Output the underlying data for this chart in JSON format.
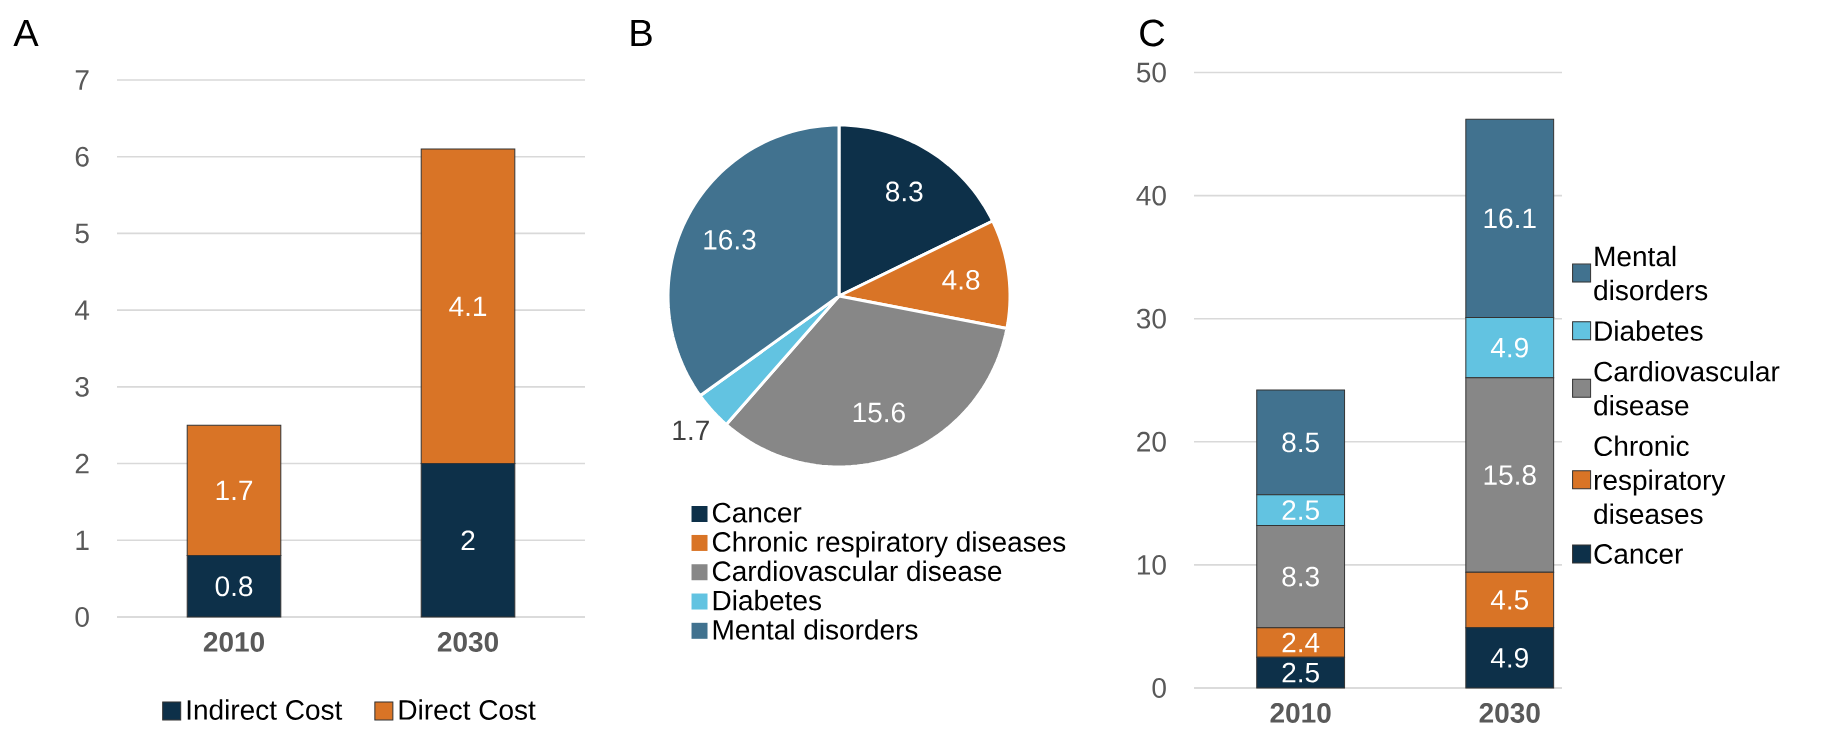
{
  "chart_data": [
    {
      "type": "bar",
      "title": "A",
      "categories": [
        "2010",
        "2030"
      ],
      "series": [
        {
          "name": "Indirect Cost",
          "color": "#0d3049",
          "values": [
            0.8,
            2
          ]
        },
        {
          "name": "Direct Cost",
          "color": "#d97426",
          "values": [
            1.7,
            4.1
          ]
        }
      ],
      "stacked": true,
      "ylim": [
        0,
        7
      ],
      "yticks": [
        0,
        1,
        2,
        3,
        4,
        5,
        6,
        7
      ],
      "grid": "y",
      "legend": "bottom",
      "data_labels": true
    },
    {
      "type": "pie",
      "title": "B",
      "categories": [
        "Cancer",
        "Chronic respiratory diseases",
        "Cardiovascular disease",
        "Diabetes",
        "Mental disorders"
      ],
      "values": [
        8.3,
        4.8,
        15.6,
        1.7,
        16.3
      ],
      "colors": [
        "#0d3049",
        "#d97426",
        "#878787",
        "#62c3e1",
        "#41728f"
      ],
      "legend": "bottom",
      "data_labels": true
    },
    {
      "type": "bar",
      "title": "C",
      "categories": [
        "2010",
        "2030"
      ],
      "series": [
        {
          "name": "Cancer",
          "color": "#0d3049",
          "values": [
            2.5,
            4.9
          ]
        },
        {
          "name": "Chronic respiratory diseases",
          "color": "#d97426",
          "values": [
            2.4,
            4.5
          ]
        },
        {
          "name": "Cardiovascular disease",
          "color": "#878787",
          "values": [
            8.3,
            15.8
          ]
        },
        {
          "name": "Diabetes",
          "color": "#62c3e1",
          "values": [
            2.5,
            4.9
          ]
        },
        {
          "name": "Mental disorders",
          "color": "#41728f",
          "values": [
            8.5,
            16.1
          ]
        }
      ],
      "stacked": true,
      "ylim": [
        0,
        50
      ],
      "yticks": [
        0,
        10,
        20,
        30,
        40,
        50
      ],
      "grid": "y",
      "legend": "right",
      "data_labels": true
    }
  ]
}
